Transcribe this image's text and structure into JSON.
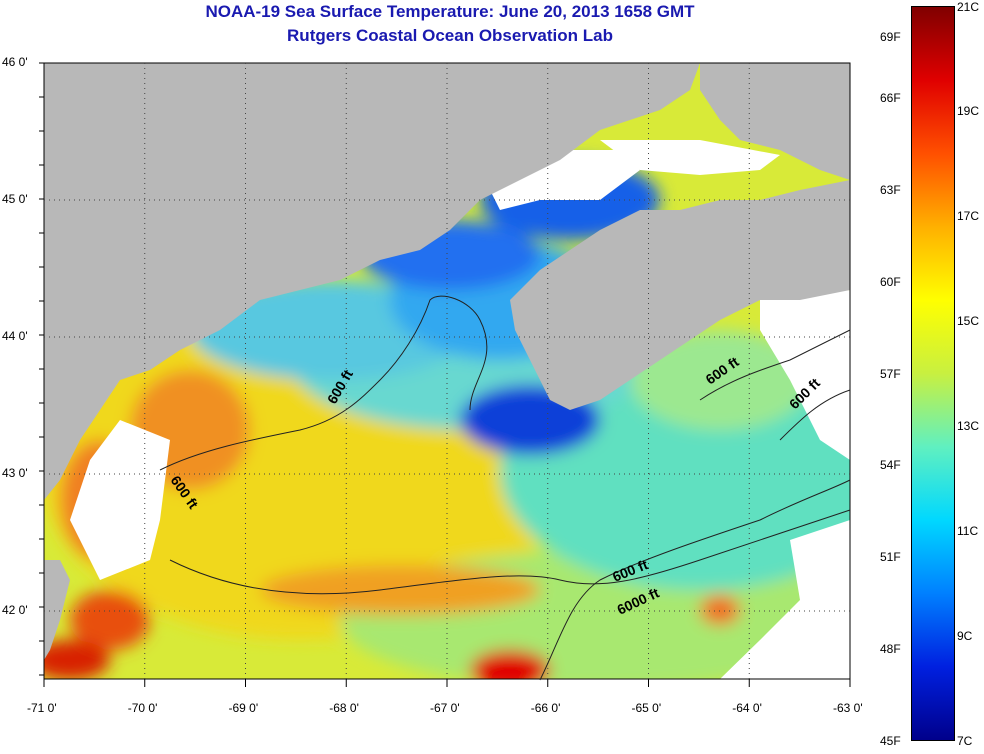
{
  "header": {
    "title": "NOAA-19 Sea Surface Temperature:  June 20, 2013 1658 GMT",
    "subtitle": "Rutgers Coastal Ocean Observation Lab"
  },
  "axes": {
    "x_ticks": [
      "-71 0'",
      "-70 0'",
      "-69 0'",
      "-68 0'",
      "-67 0'",
      "-66 0'",
      "-65 0'",
      "-64 0'",
      "-63 0'"
    ],
    "y_ticks": [
      "46 0'",
      "45 0'",
      "44 0'",
      "43 0'",
      "42 0'"
    ]
  },
  "contours": {
    "labels": [
      "600 ft",
      "600 ft",
      "600 ft",
      "600 ft",
      "6000 ft",
      "600 ft"
    ]
  },
  "colorbar": {
    "range_celsius": [
      7,
      21
    ],
    "range_fahrenheit": [
      45,
      69
    ],
    "fahrenheit_labels": [
      "69F",
      "66F",
      "63F",
      "60F",
      "57F",
      "54F",
      "51F",
      "48F",
      "45F"
    ],
    "celsius_labels": [
      "21C",
      "19C",
      "17C",
      "15C",
      "13C",
      "11C",
      "9C",
      "7C"
    ],
    "colors": [
      "#00008b",
      "#0020e0",
      "#0080ff",
      "#00d8ff",
      "#60f0c0",
      "#c8f040",
      "#ffff00",
      "#ffb000",
      "#ff5000",
      "#e00000",
      "#800000"
    ]
  },
  "colors": {
    "land": "#b8b8b8",
    "cloud_mask": "#ffffff",
    "title": "#1a1ab0"
  }
}
